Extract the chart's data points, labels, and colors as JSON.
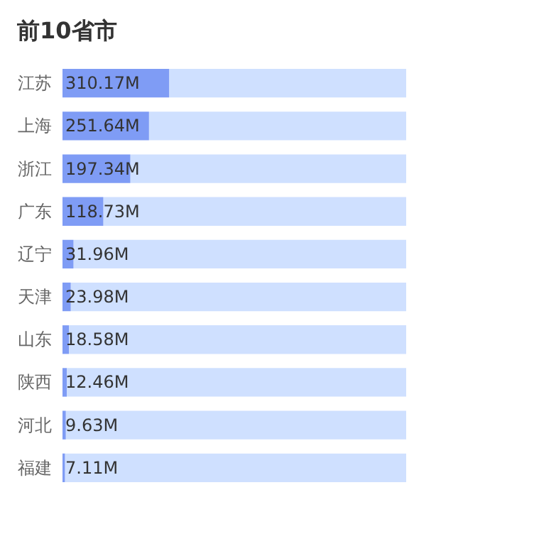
{
  "chart_data": {
    "type": "bar",
    "title": "前10省市",
    "orientation": "horizontal",
    "stacked": true,
    "categories": [
      "江苏",
      "上海",
      "浙江",
      "广东",
      "辽宁",
      "天津",
      "山东",
      "陕西",
      "河北",
      "福建"
    ],
    "series": [
      {
        "color": "#7f9cf5",
        "values": [
          310.17,
          251.64,
          197.34,
          118.73,
          31.96,
          23.98,
          18.58,
          12.46,
          9.63,
          7.11
        ],
        "value_labels": [
          "310.17M",
          "251.64M",
          "197.34M",
          "118.73M",
          "31.96M",
          "23.98M",
          "18.58M",
          "12.46M",
          "9.63M",
          "7.11M"
        ]
      },
      {
        "color": "#cfe0ff",
        "values": [
          689.83,
          748.36,
          802.66,
          881.27,
          968.04,
          976.02,
          981.42,
          987.54,
          990.37,
          992.89
        ]
      }
    ]
  }
}
